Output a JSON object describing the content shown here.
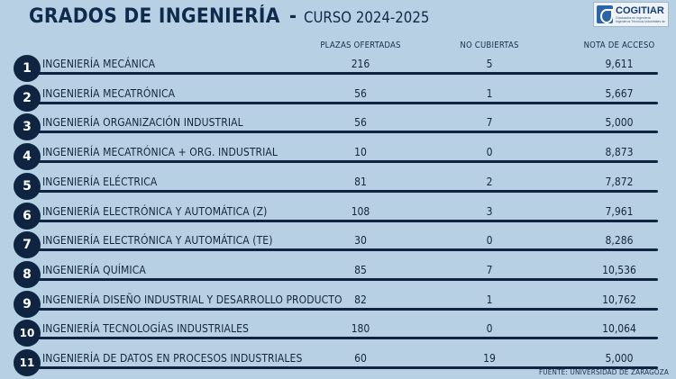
{
  "title": {
    "main": "GRADOS DE INGENIERÍA",
    "dash": "-",
    "sub": "CURSO 2024-2025"
  },
  "logo": {
    "name": "COGITIAR",
    "small1": "Graduados en Ingeniería",
    "small2": "Ingenieros Técnicos Industriales de Aragón"
  },
  "columns": {
    "plazas": "PLAZAS OFERTADAS",
    "no_cubiertas": "NO CUBIERTAS",
    "nota": "NOTA DE ACCESO"
  },
  "rows": [
    {
      "n": "1",
      "name": "INGENIERÍA MECÁNICA",
      "plazas": "216",
      "no_cubiertas": "5",
      "nota": "9,611"
    },
    {
      "n": "2",
      "name": "INGENIERÍA MECATRÓNICA",
      "plazas": "56",
      "no_cubiertas": "1",
      "nota": "5,667"
    },
    {
      "n": "3",
      "name": "INGENIERÍA ORGANIZACIÓN INDUSTRIAL",
      "plazas": "56",
      "no_cubiertas": "7",
      "nota": "5,000"
    },
    {
      "n": "4",
      "name": "INGENIERÍA MECATRÓNICA + ORG. INDUSTRIAL",
      "plazas": "10",
      "no_cubiertas": "0",
      "nota": "8,873"
    },
    {
      "n": "5",
      "name": "INGENIERÍA ELÉCTRICA",
      "plazas": "81",
      "no_cubiertas": "2",
      "nota": "7,872"
    },
    {
      "n": "6",
      "name": "INGENIERÍA ELECTRÓNICA Y AUTOMÁTICA (Z)",
      "plazas": "108",
      "no_cubiertas": "3",
      "nota": "7,961"
    },
    {
      "n": "7",
      "name": "INGENIERÍA ELECTRÓNICA Y AUTOMÁTICA (TE)",
      "plazas": "30",
      "no_cubiertas": "0",
      "nota": "8,286"
    },
    {
      "n": "8",
      "name": "INGENIERÍA QUÍMICA",
      "plazas": "85",
      "no_cubiertas": "7",
      "nota": "10,536"
    },
    {
      "n": "9",
      "name": "INGENIERÍA DISEÑO INDUSTRIAL Y DESARROLLO PRODUCTO",
      "plazas": "82",
      "no_cubiertas": "1",
      "nota": "10,762"
    },
    {
      "n": "10",
      "name": "INGENIERÍA TECNOLOGÍAS INDUSTRIALES",
      "plazas": "180",
      "no_cubiertas": "0",
      "nota": "10,064"
    },
    {
      "n": "11",
      "name": "INGENIERÍA DE DATOS EN PROCESOS INDUSTRIALES",
      "plazas": "60",
      "no_cubiertas": "19",
      "nota": "5,000"
    }
  ],
  "source": "FUENTE: UNIVERSIDAD DE ZARAGOZA"
}
